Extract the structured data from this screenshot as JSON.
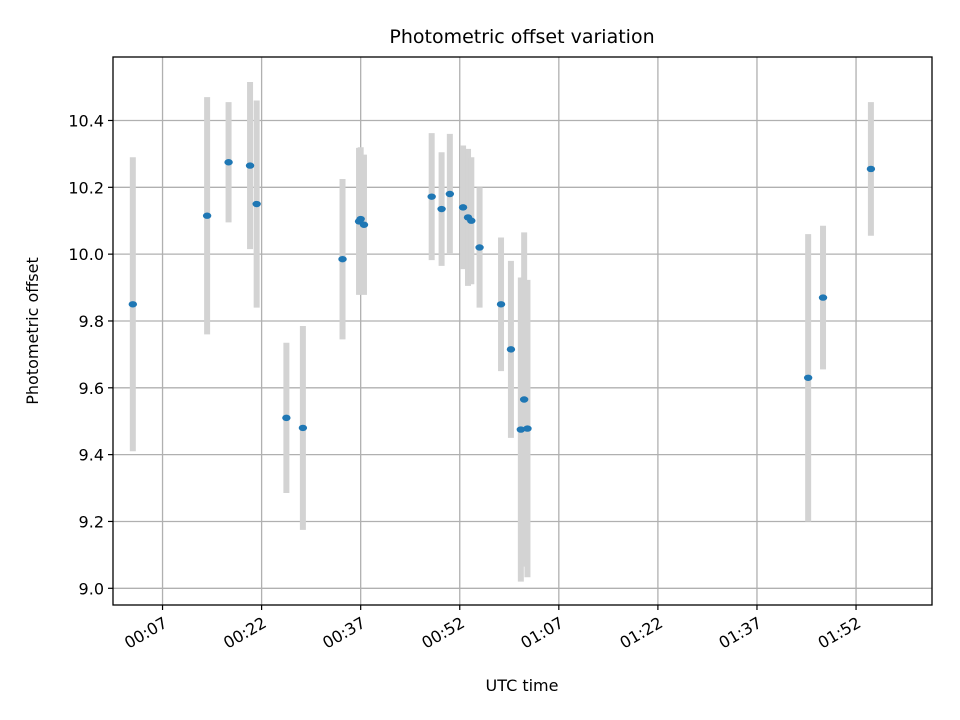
{
  "chart_data": {
    "type": "scatter",
    "title": "Photometric offset variation",
    "xlabel": "UTC time",
    "ylabel": "Photometric offset",
    "x_axis": {
      "kind": "time",
      "min": "23:59:30",
      "max": "02:03:30",
      "ticks": [
        "00:07",
        "00:22",
        "00:37",
        "00:52",
        "01:07",
        "01:22",
        "01:37",
        "01:52"
      ]
    },
    "y_axis": {
      "min": 8.95,
      "max": 10.59,
      "ticks": [
        9.0,
        9.2,
        9.4,
        9.6,
        9.8,
        10.0,
        10.2,
        10.4
      ]
    },
    "grid": true,
    "colors": {
      "point": "#1f77b4",
      "errorbar": "#d3d3d3"
    },
    "points": [
      {
        "t": "00:02:30",
        "y": 9.85,
        "err": 0.44
      },
      {
        "t": "00:13:45",
        "y": 10.115,
        "err": 0.355
      },
      {
        "t": "00:17:00",
        "y": 10.275,
        "err": 0.18
      },
      {
        "t": "00:20:15",
        "y": 10.265,
        "err": 0.25
      },
      {
        "t": "00:21:15",
        "y": 10.15,
        "err": 0.31
      },
      {
        "t": "00:25:45",
        "y": 9.51,
        "err": 0.225
      },
      {
        "t": "00:28:15",
        "y": 9.48,
        "err": 0.305
      },
      {
        "t": "00:34:15",
        "y": 9.985,
        "err": 0.24
      },
      {
        "t": "00:36:45",
        "y": 10.098,
        "err": 0.22
      },
      {
        "t": "00:37:00",
        "y": 10.105,
        "err": 0.215
      },
      {
        "t": "00:37:30",
        "y": 10.088,
        "err": 0.21
      },
      {
        "t": "00:47:45",
        "y": 10.172,
        "err": 0.19
      },
      {
        "t": "00:49:15",
        "y": 10.135,
        "err": 0.17
      },
      {
        "t": "00:50:30",
        "y": 10.18,
        "err": 0.18
      },
      {
        "t": "00:52:30",
        "y": 10.14,
        "err": 0.185
      },
      {
        "t": "00:53:15",
        "y": 10.11,
        "err": 0.205
      },
      {
        "t": "00:53:45",
        "y": 10.1,
        "err": 0.19
      },
      {
        "t": "00:55:00",
        "y": 10.02,
        "err": 0.18
      },
      {
        "t": "00:58:15",
        "y": 9.85,
        "err": 0.2
      },
      {
        "t": "00:59:45",
        "y": 9.715,
        "err": 0.265
      },
      {
        "t": "01:01:15",
        "y": 9.475,
        "err": 0.455
      },
      {
        "t": "01:01:45",
        "y": 9.565,
        "err": 0.5
      },
      {
        "t": "01:02:15",
        "y": 9.478,
        "err": 0.445
      },
      {
        "t": "01:44:45",
        "y": 9.63,
        "err": 0.43
      },
      {
        "t": "01:47:00",
        "y": 9.87,
        "err": 0.215
      },
      {
        "t": "01:54:15",
        "y": 10.255,
        "err": 0.2
      }
    ]
  }
}
